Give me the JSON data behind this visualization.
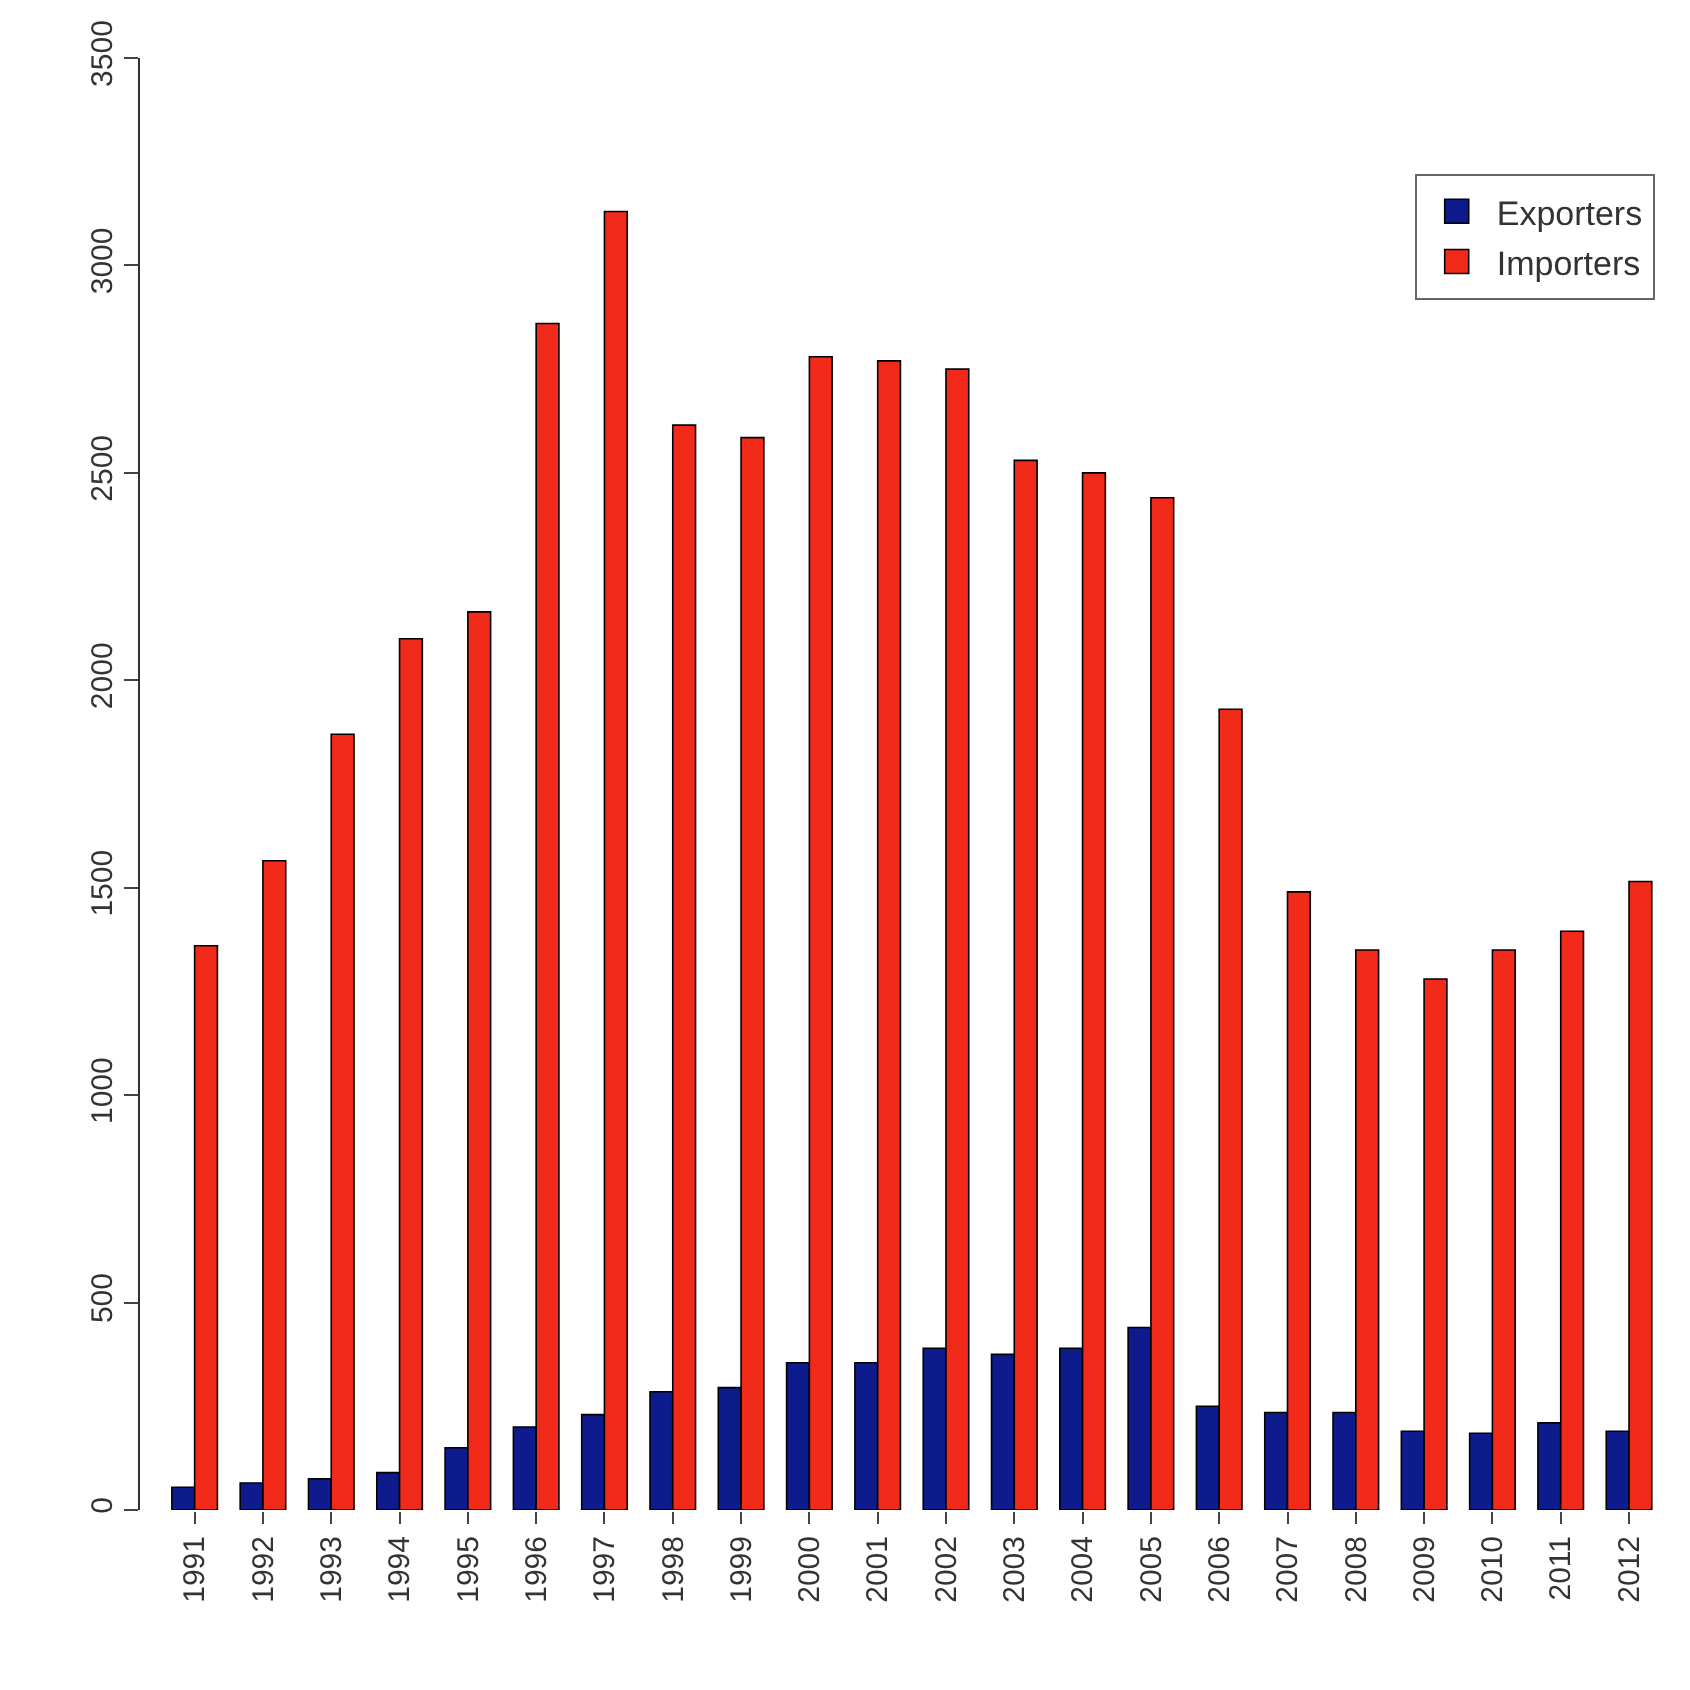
{
  "chart_data": {
    "type": "bar",
    "categories": [
      "1991",
      "1992",
      "1993",
      "1994",
      "1995",
      "1996",
      "1997",
      "1998",
      "1999",
      "2000",
      "2001",
      "2002",
      "2003",
      "2004",
      "2005",
      "2006",
      "2007",
      "2008",
      "2009",
      "2010",
      "2011",
      "2012"
    ],
    "series": [
      {
        "name": "Exporters",
        "color": "#0d1b8c",
        "values": [
          55,
          65,
          75,
          90,
          150,
          200,
          230,
          285,
          295,
          355,
          355,
          390,
          375,
          390,
          440,
          250,
          235,
          235,
          190,
          185,
          210,
          190
        ]
      },
      {
        "name": "Importers",
        "color": "#f22a1a",
        "values": [
          1360,
          1565,
          1870,
          2100,
          2165,
          2860,
          3130,
          2615,
          2585,
          2780,
          2770,
          2750,
          2530,
          2500,
          2440,
          1930,
          1490,
          1350,
          1280,
          1350,
          1395,
          1515
        ]
      }
    ],
    "ylim": [
      0,
      3500
    ],
    "yticks": [
      0,
      500,
      1000,
      1500,
      2000,
      2500,
      3000,
      3500
    ],
    "legend": "top right"
  }
}
